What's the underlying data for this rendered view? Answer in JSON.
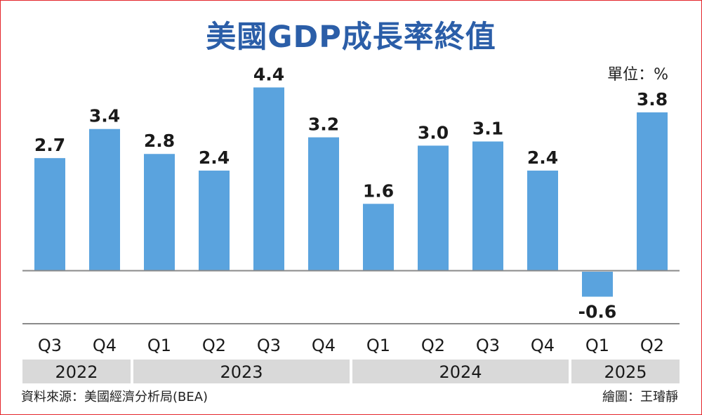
{
  "chart_data": {
    "type": "bar",
    "title": "美國GDP成長率終值",
    "unit_label": "單位：%",
    "categories": [
      "Q3",
      "Q4",
      "Q1",
      "Q2",
      "Q3",
      "Q4",
      "Q1",
      "Q2",
      "Q3",
      "Q4",
      "Q1",
      "Q2"
    ],
    "values": [
      2.7,
      3.4,
      2.8,
      2.4,
      4.4,
      3.2,
      1.6,
      3.0,
      3.1,
      2.4,
      -0.6,
      3.8
    ],
    "value_labels": [
      "2.7",
      "3.4",
      "2.8",
      "2.4",
      "4.4",
      "3.2",
      "1.6",
      "3.0",
      "3.1",
      "2.4",
      "-0.6",
      "3.8"
    ],
    "year_groups": [
      {
        "label": "2022",
        "count": 2
      },
      {
        "label": "2023",
        "count": 4
      },
      {
        "label": "2024",
        "count": 4
      },
      {
        "label": "2025",
        "count": 2
      }
    ],
    "bar_color": "#5aa3de",
    "ylim": [
      -0.7,
      4.5
    ],
    "grid": false
  },
  "footer": {
    "source": "資料來源：美國經濟分析局(BEA)",
    "credit": "繪圖：王璿靜"
  },
  "colors": {
    "title": "#2b5ea8",
    "border": "#e3262b",
    "year_band": "#d9d9d9"
  }
}
